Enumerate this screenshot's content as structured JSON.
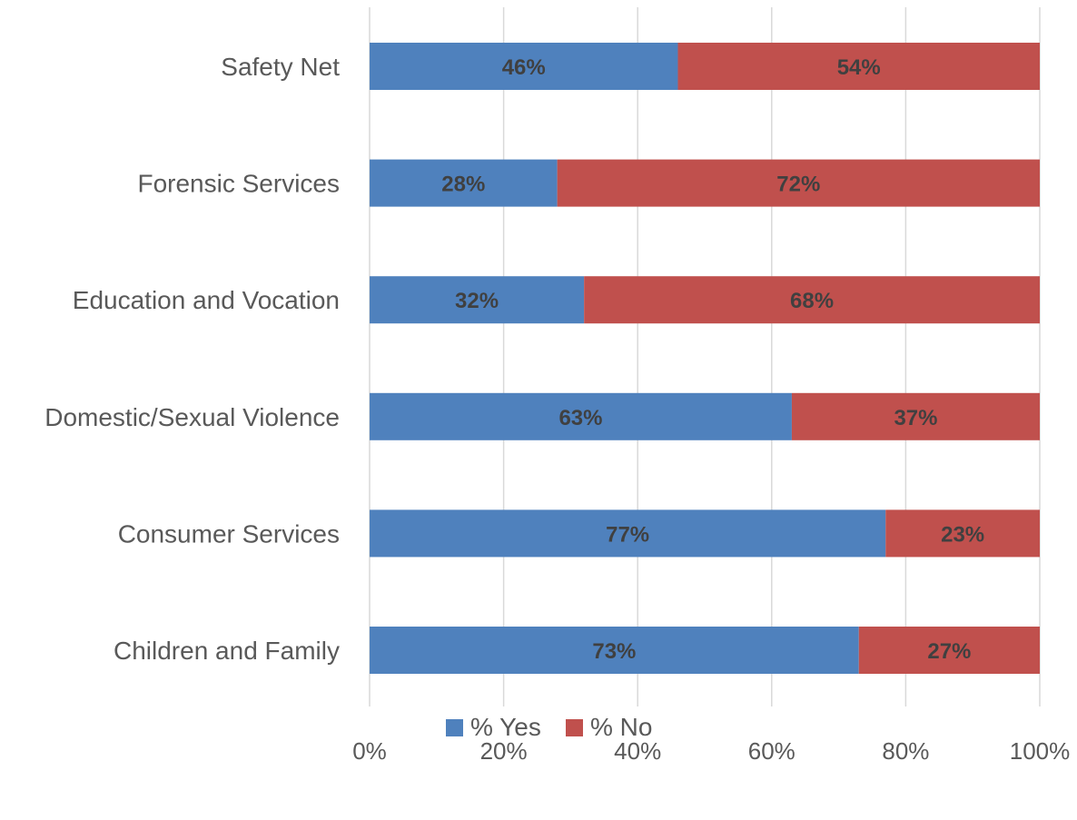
{
  "chart_data": {
    "type": "bar",
    "orientation": "horizontal",
    "stacked": "percent",
    "categories": [
      "Safety Net",
      "Forensic Services",
      "Education and Vocation",
      "Domestic/Sexual Violence",
      "Consumer Services",
      "Children and Family"
    ],
    "series": [
      {
        "name": "% Yes",
        "color": "#4f81bd",
        "values": [
          46,
          28,
          32,
          63,
          77,
          73
        ],
        "labels": [
          "46%",
          "28%",
          "32%",
          "63%",
          "77%",
          "73%"
        ]
      },
      {
        "name": "% No",
        "color": "#c0504d",
        "values": [
          54,
          72,
          68,
          37,
          23,
          27
        ],
        "labels": [
          "54%",
          "72%",
          "68%",
          "37%",
          "23%",
          "27%"
        ]
      }
    ],
    "xlim": [
      0,
      100
    ],
    "xticks": [
      "0%",
      "20%",
      "40%",
      "60%",
      "80%",
      "100%"
    ],
    "grid": "vertical",
    "legend": "bottom",
    "title": "",
    "xlabel": "",
    "ylabel": ""
  }
}
